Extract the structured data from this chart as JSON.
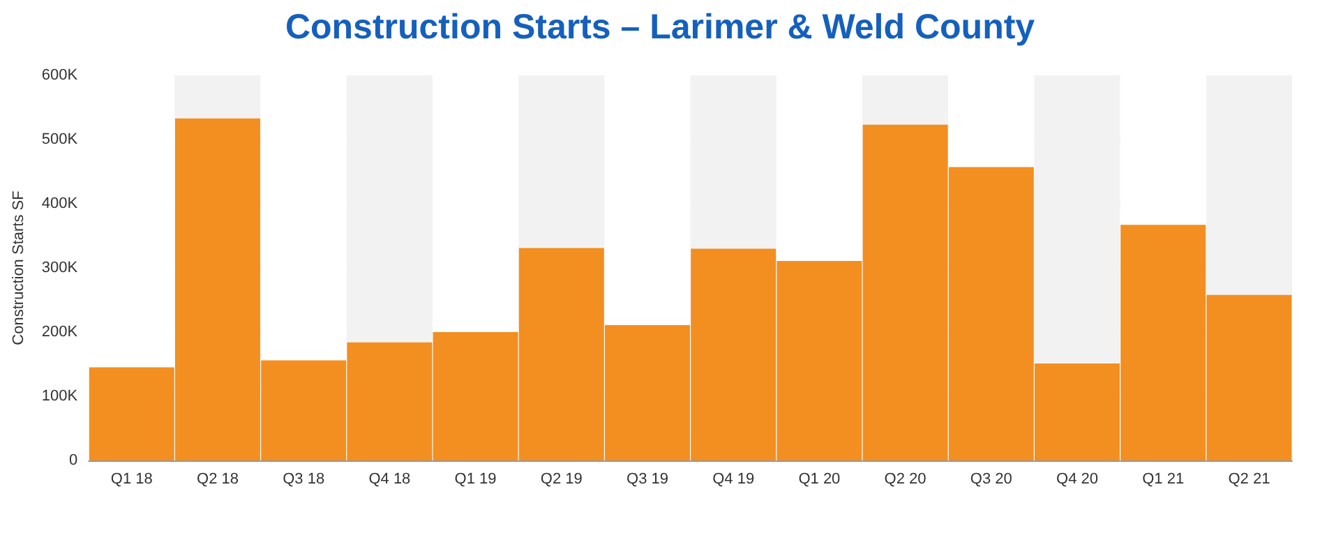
{
  "chart_data": {
    "type": "bar",
    "title": "Construction Starts – Larimer & Weld County",
    "ylabel": "Construction Starts SF",
    "categories": [
      "Q1 18",
      "Q2 18",
      "Q3 18",
      "Q4 18",
      "Q1 19",
      "Q2 19",
      "Q3 19",
      "Q4 19",
      "Q1 20",
      "Q2 20",
      "Q3 20",
      "Q4 20",
      "Q1 21",
      "Q2 21"
    ],
    "values": [
      145000,
      533000,
      156000,
      184000,
      200000,
      331000,
      211000,
      330000,
      311000,
      523000,
      457000,
      151000,
      367000,
      258000
    ],
    "color": "#f28f20",
    "ylim": [
      0,
      600000
    ],
    "yticks": [
      {
        "value": 0,
        "label": "0"
      },
      {
        "value": 100000,
        "label": "100K"
      },
      {
        "value": 200000,
        "label": "200K"
      },
      {
        "value": 300000,
        "label": "300K"
      },
      {
        "value": 400000,
        "label": "400K"
      },
      {
        "value": 500000,
        "label": "500K"
      },
      {
        "value": 600000,
        "label": "600K"
      }
    ],
    "grid": "y"
  }
}
